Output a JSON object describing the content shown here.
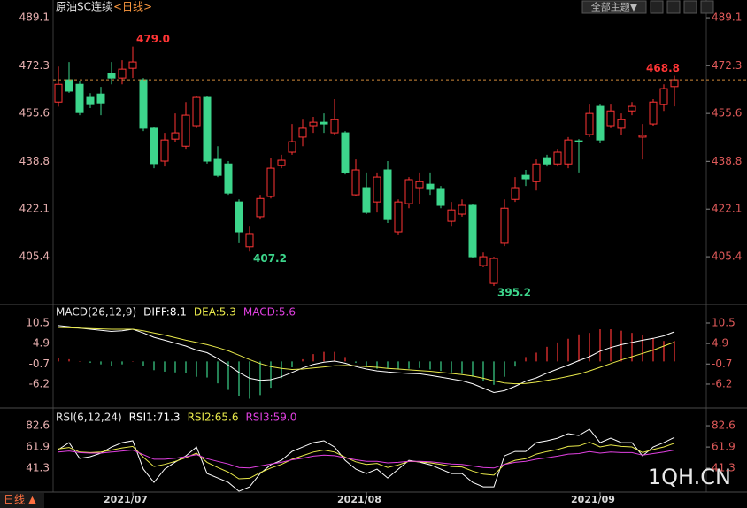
{
  "header": {
    "theme_button": "全部主题▼"
  },
  "footer": {
    "period_button": "日线 ▲"
  },
  "watermark": "1QH.CN",
  "chart_data": [
    {
      "type": "candlestick",
      "title": "原油SC连续",
      "period": "<日线>",
      "categories": [
        null,
        null,
        null,
        null,
        null,
        null,
        null,
        "2021/07",
        null,
        null,
        null,
        null,
        null,
        null,
        null,
        null,
        null,
        null,
        null,
        null,
        null,
        null,
        null,
        null,
        null,
        null,
        null,
        null,
        null,
        "2021/08",
        null,
        null,
        null,
        null,
        null,
        null,
        null,
        null,
        null,
        null,
        null,
        null,
        null,
        null,
        null,
        null,
        null,
        null,
        null,
        null,
        null,
        "2021/09",
        null,
        null,
        null,
        null,
        null,
        null,
        null
      ],
      "open": [
        459.6,
        467.4,
        465.8,
        461.2,
        462.4,
        469.6,
        468.0,
        471.4,
        467.4,
        450.4,
        438.9,
        446.6,
        444.1,
        451.3,
        461.2,
        439.5,
        437.9,
        424.6,
        408.9,
        419.4,
        426.5,
        437.3,
        442.0,
        447.3,
        451.3,
        452.5,
        448.8,
        448.8,
        427.1,
        429.6,
        424.6,
        435.8,
        414.1,
        424.0,
        429.6,
        430.8,
        429.3,
        417.8,
        420.3,
        423.4,
        402.3,
        396.1,
        410.1,
        425.5,
        433.9,
        431.7,
        440.1,
        437.9,
        437.9,
        446.0,
        448.2,
        458.1,
        451.3,
        450.4,
        456.5,
        447.3,
        451.9,
        458.7,
        465.0
      ],
      "high": [
        472.0,
        473.6,
        466.8,
        462.7,
        464.9,
        473.6,
        474.2,
        479.0,
        468.0,
        451.0,
        448.8,
        455.6,
        459.6,
        461.8,
        461.8,
        444.1,
        438.9,
        425.5,
        416.2,
        427.1,
        440.1,
        441.1,
        451.9,
        453.4,
        454.4,
        455.6,
        460.6,
        449.4,
        439.5,
        434.9,
        434.9,
        438.9,
        425.5,
        433.3,
        434.9,
        434.9,
        430.2,
        424.6,
        425.5,
        424.0,
        406.9,
        405.4,
        425.5,
        433.3,
        435.8,
        439.5,
        441.1,
        443.2,
        447.3,
        446.6,
        458.7,
        458.7,
        458.7,
        455.6,
        459.6,
        451.9,
        460.6,
        465.8,
        468.8
      ],
      "low": [
        458.0,
        462.8,
        455.0,
        457.5,
        455.0,
        465.8,
        465.8,
        468.0,
        449.4,
        436.4,
        437.0,
        445.7,
        443.2,
        450.4,
        438.0,
        433.3,
        427.1,
        410.1,
        407.2,
        418.4,
        425.8,
        436.4,
        441.1,
        444.1,
        448.8,
        448.8,
        447.9,
        434.2,
        426.5,
        420.3,
        420.9,
        417.2,
        413.2,
        422.4,
        424.0,
        427.1,
        422.4,
        416.2,
        419.4,
        404.8,
        401.7,
        395.2,
        409.1,
        424.6,
        430.2,
        428.6,
        437.0,
        437.0,
        436.4,
        434.9,
        447.3,
        445.1,
        450.4,
        448.2,
        455.0,
        439.5,
        451.3,
        456.5,
        458.1
      ],
      "close": [
        465.8,
        463.4,
        455.9,
        458.7,
        459.3,
        468.0,
        471.1,
        473.6,
        450.4,
        438.0,
        446.3,
        448.8,
        455.0,
        461.2,
        438.9,
        433.9,
        427.7,
        414.1,
        413.5,
        425.8,
        436.4,
        439.2,
        445.7,
        450.4,
        452.5,
        451.9,
        453.4,
        434.9,
        435.8,
        420.9,
        433.3,
        418.4,
        424.6,
        432.4,
        431.7,
        429.0,
        423.4,
        421.8,
        423.4,
        405.4,
        405.4,
        404.8,
        422.4,
        429.6,
        432.7,
        437.9,
        437.9,
        442.0,
        446.3,
        445.7,
        455.6,
        446.3,
        456.5,
        453.4,
        458.1,
        447.9,
        459.6,
        464.3,
        467.4
      ],
      "up_color": "#ff3535",
      "down_color": "#3dd68c",
      "last_line_color": "#d08a3a",
      "annotations": [
        {
          "value": 479.0,
          "label": "479.0"
        },
        {
          "value": 407.2,
          "label": "407.2"
        },
        {
          "value": 395.2,
          "label": "395.2"
        },
        {
          "value": 468.8,
          "label": "468.8"
        }
      ],
      "ylim": [
        389.0,
        491.6
      ],
      "yticks": [
        405.4,
        422.1,
        438.8,
        455.6,
        472.3,
        489.1
      ],
      "grid": false
    },
    {
      "type": "line",
      "title": "MACD(26,12,9)",
      "ylim": [
        -12.5,
        15.1
      ],
      "yticks": [
        -6.2,
        -0.7,
        4.9,
        10.5
      ],
      "grid": false,
      "bar_colors": {
        "up": "#ff3535",
        "down": "#3dd68c"
      },
      "series": [
        {
          "name": "DIFF:8.1",
          "color": "#ffffff",
          "values": [
            9.8,
            9.5,
            9.1,
            8.8,
            8.5,
            8.2,
            8.4,
            8.8,
            7.8,
            6.6,
            5.8,
            5.0,
            4.2,
            3.1,
            2.4,
            0.8,
            -1.0,
            -3.0,
            -4.6,
            -5.2,
            -5.0,
            -4.2,
            -3.0,
            -1.8,
            -0.8,
            -0.2,
            0.1,
            -0.5,
            -1.4,
            -2.1,
            -2.6,
            -2.9,
            -3.1,
            -3.3,
            -3.4,
            -3.8,
            -4.3,
            -4.8,
            -5.3,
            -6.1,
            -7.3,
            -8.5,
            -8.0,
            -6.8,
            -5.4,
            -4.5,
            -3.2,
            -2.1,
            -1.0,
            0.2,
            1.3,
            2.8,
            3.8,
            4.6,
            5.2,
            5.8,
            6.3,
            7.0,
            8.1
          ]
        },
        {
          "name": "DEA:5.3",
          "color": "#e8e84a",
          "values": [
            9.3,
            9.2,
            9.1,
            9.0,
            8.9,
            8.8,
            8.8,
            8.8,
            8.4,
            7.8,
            7.2,
            6.5,
            5.8,
            5.2,
            4.6,
            3.8,
            2.9,
            1.7,
            0.5,
            -0.6,
            -1.4,
            -1.9,
            -2.2,
            -2.1,
            -1.8,
            -1.5,
            -1.2,
            -1.1,
            -1.2,
            -1.4,
            -1.6,
            -1.9,
            -2.1,
            -2.3,
            -2.5,
            -2.7,
            -3.0,
            -3.3,
            -3.6,
            -4.0,
            -4.6,
            -5.3,
            -5.9,
            -6.1,
            -6.0,
            -5.7,
            -5.2,
            -4.7,
            -4.1,
            -3.5,
            -2.6,
            -1.6,
            -0.6,
            0.4,
            1.3,
            2.2,
            3.1,
            4.2,
            5.3
          ]
        },
        {
          "name": "MACD:5.6",
          "color": "#e040e0",
          "type": "bar",
          "values": [
            1.0,
            0.6,
            0.0,
            -0.4,
            -0.8,
            -1.2,
            -0.8,
            0.0,
            -1.2,
            -2.4,
            -2.8,
            -3.0,
            -3.2,
            -4.2,
            -4.4,
            -6.0,
            -7.8,
            -9.4,
            -10.2,
            -9.2,
            -7.2,
            -4.6,
            -1.6,
            0.6,
            2.0,
            2.6,
            2.6,
            1.2,
            -0.4,
            -1.4,
            -2.0,
            -2.0,
            -2.0,
            -2.0,
            -1.8,
            -2.2,
            -2.6,
            -3.0,
            -3.4,
            -4.2,
            -5.4,
            -6.4,
            -4.2,
            -1.4,
            1.2,
            2.4,
            4.0,
            5.2,
            6.2,
            7.4,
            7.8,
            8.8,
            8.8,
            8.4,
            7.8,
            7.2,
            6.4,
            5.6,
            5.6
          ]
        }
      ]
    },
    {
      "type": "line",
      "title": "RSI(6,12,24)",
      "ylim": [
        18.1,
        96.4
      ],
      "yticks": [
        41.3,
        61.9,
        82.6
      ],
      "grid": false,
      "series": [
        {
          "name": "RSI1:71.3",
          "color": "#ffffff",
          "values": [
            59.4,
            66.2,
            50.8,
            52.5,
            55.9,
            61.9,
            66.2,
            68.0,
            40.4,
            27.5,
            40.4,
            47.3,
            53.3,
            61.9,
            36.1,
            31.8,
            27.5,
            18.9,
            23.2,
            36.1,
            44.7,
            49.0,
            57.6,
            61.9,
            66.2,
            68.0,
            61.9,
            49.0,
            40.4,
            36.1,
            40.4,
            31.8,
            40.4,
            49.0,
            47.3,
            44.7,
            40.4,
            36.1,
            36.1,
            27.5,
            23.2,
            23.2,
            53.3,
            57.6,
            57.6,
            66.2,
            68.0,
            70.5,
            74.9,
            73.1,
            79.2,
            66.2,
            70.5,
            66.2,
            66.2,
            53.3,
            61.9,
            66.2,
            71.3
          ]
        },
        {
          "name": "RSI2:65.6",
          "color": "#e8e84a",
          "values": [
            60.0,
            61.5,
            57.0,
            56.5,
            57.0,
            59.0,
            61.0,
            62.5,
            52.0,
            43.0,
            45.0,
            48.0,
            51.5,
            56.0,
            47.0,
            42.0,
            37.5,
            31.0,
            31.5,
            37.0,
            41.5,
            45.0,
            50.0,
            53.5,
            57.0,
            59.0,
            57.0,
            52.0,
            47.5,
            45.0,
            46.0,
            42.0,
            44.5,
            48.0,
            47.5,
            46.5,
            45.0,
            43.0,
            42.5,
            38.5,
            35.5,
            34.5,
            45.0,
            49.0,
            50.5,
            55.0,
            57.5,
            59.5,
            62.5,
            63.0,
            66.5,
            62.0,
            64.0,
            62.5,
            62.0,
            56.5,
            59.5,
            62.0,
            65.6
          ]
        },
        {
          "name": "RSI3:59.0",
          "color": "#e040e0",
          "values": [
            57.0,
            58.0,
            56.5,
            56.0,
            56.0,
            57.0,
            58.0,
            59.0,
            54.5,
            50.0,
            50.0,
            51.0,
            52.5,
            54.5,
            50.5,
            48.0,
            45.5,
            42.0,
            41.5,
            43.5,
            45.5,
            47.0,
            49.5,
            51.0,
            53.0,
            54.0,
            53.5,
            51.5,
            49.5,
            48.0,
            48.0,
            46.5,
            47.0,
            48.0,
            48.0,
            47.5,
            46.5,
            45.5,
            45.0,
            43.5,
            42.0,
            41.5,
            45.0,
            47.0,
            48.0,
            50.0,
            51.5,
            53.0,
            55.0,
            55.5,
            57.5,
            56.0,
            57.0,
            56.5,
            56.5,
            54.0,
            55.5,
            57.0,
            59.0
          ]
        }
      ]
    }
  ]
}
